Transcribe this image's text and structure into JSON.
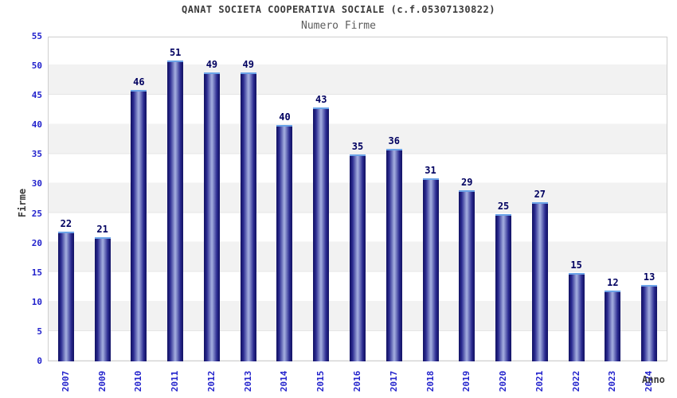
{
  "chart_data": {
    "type": "bar",
    "title": "QANAT SOCIETA COOPERATIVA SOCIALE (c.f.05307130822)",
    "subtitle": "Numero Firme",
    "xlabel": "Anno",
    "ylabel": "Firme",
    "categories": [
      "2007",
      "2009",
      "2010",
      "2011",
      "2012",
      "2013",
      "2014",
      "2015",
      "2016",
      "2017",
      "2018",
      "2019",
      "2020",
      "2021",
      "2022",
      "2023",
      "2024"
    ],
    "values": [
      22,
      21,
      46,
      51,
      49,
      49,
      40,
      43,
      35,
      36,
      31,
      29,
      25,
      27,
      15,
      12,
      13
    ],
    "ylim": [
      0,
      55
    ],
    "ytick_step": 5,
    "yticks": [
      0,
      5,
      10,
      15,
      20,
      25,
      30,
      35,
      40,
      45,
      50,
      55
    ],
    "grid": "alternating horizontal bands every 5 units",
    "legend": "none",
    "value_labels": "above bars",
    "x_tick_rotation": -90,
    "colors": {
      "bar_dark": "#16166b",
      "bar_edge": "#2a2a90",
      "bar_light": "#9fa9dc",
      "bar_cap": "#6ba3e8",
      "tick_label": "#2222cc",
      "value_label": "#000060",
      "band_gray": "#f2f2f2",
      "plot_border": "#cfcfcf",
      "title_text": "#3b3b3b",
      "subtitle_text": "#5c5c5c"
    }
  }
}
